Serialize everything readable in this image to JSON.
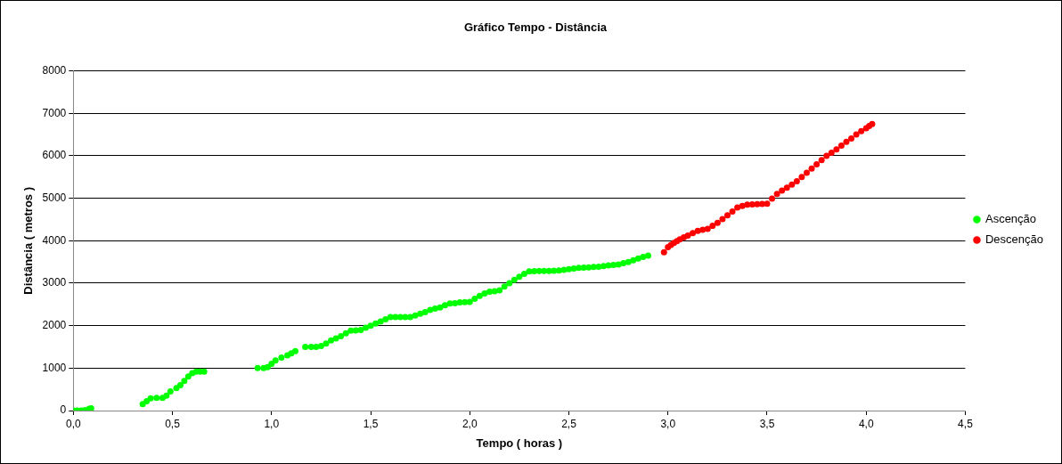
{
  "chart_data": {
    "type": "scatter",
    "title": "Gráfico Tempo - Distância",
    "xlabel": "Tempo ( horas )",
    "ylabel": "Distância ( metros )",
    "xlim": [
      0,
      4.5
    ],
    "ylim": [
      0,
      8000
    ],
    "xticks": [
      {
        "value": 0,
        "label": "0,0"
      },
      {
        "value": 0.5,
        "label": "0,5"
      },
      {
        "value": 1,
        "label": "1,0"
      },
      {
        "value": 1.5,
        "label": "1,5"
      },
      {
        "value": 2,
        "label": "2,0"
      },
      {
        "value": 2.5,
        "label": "2,5"
      },
      {
        "value": 3,
        "label": "3,0"
      },
      {
        "value": 3.5,
        "label": "3,5"
      },
      {
        "value": 4,
        "label": "4,0"
      },
      {
        "value": 4.5,
        "label": "4,5"
      }
    ],
    "yticks": [
      0,
      1000,
      2000,
      3000,
      4000,
      5000,
      6000,
      7000,
      8000
    ],
    "grid": "y",
    "legend": "right",
    "marker": "circle",
    "series": [
      {
        "name": "Ascenção",
        "color": "#00ff00",
        "x": [
          0,
          0.02,
          0.04,
          0.06,
          0.08,
          0.09,
          0.35,
          0.37,
          0.39,
          0.42,
          0.45,
          0.47,
          0.49,
          0.52,
          0.54,
          0.56,
          0.58,
          0.6,
          0.62,
          0.64,
          0.66,
          0.93,
          0.96,
          0.98,
          1.0,
          1.02,
          1.05,
          1.08,
          1.1,
          1.12,
          1.17,
          1.2,
          1.225,
          1.25,
          1.275,
          1.3,
          1.325,
          1.35,
          1.375,
          1.4,
          1.425,
          1.45,
          1.475,
          1.5,
          1.525,
          1.55,
          1.575,
          1.6,
          1.625,
          1.65,
          1.675,
          1.7,
          1.725,
          1.75,
          1.775,
          1.8,
          1.825,
          1.85,
          1.875,
          1.9,
          1.925,
          1.95,
          1.975,
          2.0,
          2.025,
          2.05,
          2.075,
          2.1,
          2.125,
          2.15,
          2.175,
          2.2,
          2.225,
          2.25,
          2.275,
          2.3,
          2.325,
          2.35,
          2.375,
          2.4,
          2.425,
          2.45,
          2.475,
          2.5,
          2.525,
          2.55,
          2.575,
          2.6,
          2.625,
          2.65,
          2.675,
          2.7,
          2.725,
          2.75,
          2.775,
          2.8,
          2.825,
          2.85,
          2.875,
          2.9
        ],
        "values": [
          0,
          0,
          0,
          10,
          40,
          50,
          150,
          220,
          290,
          300,
          300,
          350,
          450,
          530,
          600,
          700,
          800,
          880,
          920,
          920,
          920,
          1000,
          1000,
          1020,
          1100,
          1180,
          1250,
          1300,
          1350,
          1400,
          1500,
          1500,
          1500,
          1520,
          1580,
          1650,
          1700,
          1750,
          1820,
          1880,
          1890,
          1900,
          1950,
          2000,
          2050,
          2100,
          2150,
          2200,
          2200,
          2200,
          2200,
          2200,
          2240,
          2280,
          2320,
          2370,
          2400,
          2430,
          2480,
          2520,
          2530,
          2550,
          2555,
          2560,
          2630,
          2700,
          2760,
          2800,
          2810,
          2830,
          2920,
          3000,
          3080,
          3150,
          3220,
          3280,
          3285,
          3290,
          3290,
          3290,
          3295,
          3300,
          3315,
          3330,
          3345,
          3360,
          3365,
          3370,
          3380,
          3390,
          3405,
          3420,
          3430,
          3440,
          3470,
          3500,
          3540,
          3580,
          3620,
          3650
        ]
      },
      {
        "name": "Descenção",
        "color": "#ff0000",
        "x": [
          2.98,
          3.0,
          3.015,
          3.03,
          3.045,
          3.06,
          3.08,
          3.1,
          3.125,
          3.15,
          3.175,
          3.2,
          3.225,
          3.25,
          3.275,
          3.3,
          3.325,
          3.35,
          3.375,
          3.4,
          3.425,
          3.45,
          3.475,
          3.5,
          3.525,
          3.55,
          3.575,
          3.6,
          3.625,
          3.65,
          3.675,
          3.7,
          3.725,
          3.75,
          3.775,
          3.8,
          3.825,
          3.85,
          3.875,
          3.9,
          3.925,
          3.95,
          3.975,
          4.0,
          4.015,
          4.03
        ],
        "values": [
          3730,
          3850,
          3900,
          3950,
          3990,
          4030,
          4080,
          4120,
          4180,
          4230,
          4260,
          4280,
          4350,
          4420,
          4510,
          4600,
          4690,
          4780,
          4820,
          4850,
          4855,
          4860,
          4865,
          4870,
          4990,
          5100,
          5180,
          5250,
          5320,
          5400,
          5500,
          5600,
          5700,
          5800,
          5900,
          6000,
          6070,
          6150,
          6240,
          6330,
          6410,
          6500,
          6580,
          6650,
          6700,
          6750
        ]
      }
    ]
  }
}
